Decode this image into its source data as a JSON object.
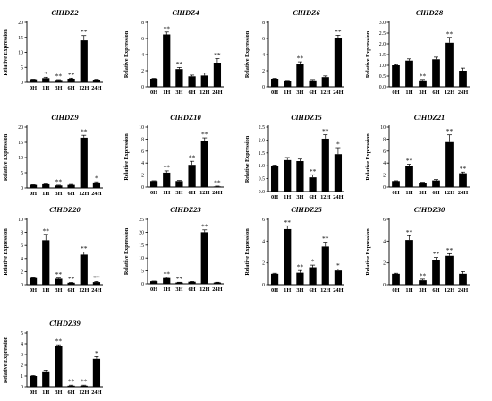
{
  "figure": {
    "background": "#ffffff",
    "bar_color": "#000000",
    "first_bar_color": "#000000"
  },
  "chart_data": [
    {
      "type": "bar",
      "title": "ClHDZ2",
      "ylabel": "Relative Expression",
      "categories": [
        "0H",
        "1H",
        "3H",
        "6H",
        "12H",
        "24H"
      ],
      "values": [
        1.0,
        1.4,
        0.8,
        1.2,
        14.0,
        0.9
      ],
      "errors": [
        0.05,
        0.3,
        0.1,
        0.2,
        1.6,
        0.1
      ],
      "significance": [
        "",
        "*",
        "**",
        "**",
        "**",
        ""
      ],
      "ylim": [
        0,
        20
      ],
      "yticks": [
        0,
        5,
        10,
        15,
        20
      ],
      "ytick_labels": [
        "0",
        "5",
        "10",
        "15",
        "20"
      ]
    },
    {
      "type": "bar",
      "title": "ClHDZ4",
      "ylabel": "Relative Expression",
      "categories": [
        "0H",
        "1H",
        "3H",
        "6H",
        "12H",
        "24H"
      ],
      "values": [
        1.0,
        6.5,
        2.2,
        1.3,
        1.4,
        3.0
      ],
      "errors": [
        0.05,
        0.3,
        0.2,
        0.15,
        0.3,
        0.5
      ],
      "significance": [
        "",
        "**",
        "**",
        "",
        "",
        "**"
      ],
      "ylim": [
        0,
        8
      ],
      "yticks": [
        0,
        2,
        4,
        6,
        8
      ],
      "ytick_labels": [
        "0",
        "2",
        "4",
        "6",
        "8"
      ]
    },
    {
      "type": "bar",
      "title": "ClHDZ6",
      "ylabel": "Relative Expression",
      "categories": [
        "0H",
        "1H",
        "3H",
        "6H",
        "12H",
        "24H"
      ],
      "values": [
        1.0,
        0.7,
        2.8,
        0.8,
        1.2,
        6.0
      ],
      "errors": [
        0.05,
        0.1,
        0.3,
        0.1,
        0.15,
        0.4
      ],
      "significance": [
        "",
        "",
        "**",
        "",
        "",
        "**"
      ],
      "ylim": [
        0,
        8
      ],
      "yticks": [
        0,
        2,
        4,
        6,
        8
      ],
      "ytick_labels": [
        "0",
        "2",
        "4",
        "6",
        "8"
      ]
    },
    {
      "type": "bar",
      "title": "ClHDZ8",
      "ylabel": "Relative Expression",
      "categories": [
        "0H",
        "1H",
        "3H",
        "6H",
        "12H",
        "24H"
      ],
      "values": [
        1.0,
        1.22,
        0.3,
        1.28,
        2.05,
        0.75
      ],
      "errors": [
        0.03,
        0.08,
        0.04,
        0.1,
        0.25,
        0.12
      ],
      "significance": [
        "",
        "",
        "**",
        "",
        "**",
        ""
      ],
      "ylim": [
        0,
        3
      ],
      "yticks": [
        0,
        0.5,
        1,
        1.5,
        2,
        2.5,
        3
      ],
      "ytick_labels": [
        "0.0",
        "0.5",
        "1.0",
        "1.5",
        "2.0",
        "2.5",
        "3.0"
      ]
    },
    {
      "type": "bar",
      "title": "ClHDZ9",
      "ylabel": "Relative Expression",
      "categories": [
        "0H",
        "1H",
        "3H",
        "6H",
        "12H",
        "24H"
      ],
      "values": [
        1.0,
        1.2,
        0.8,
        1.0,
        16.5,
        1.8
      ],
      "errors": [
        0.05,
        0.1,
        0.1,
        0.15,
        0.8,
        0.2
      ],
      "significance": [
        "",
        "",
        "**",
        "",
        "**",
        "*"
      ],
      "ylim": [
        0,
        20
      ],
      "yticks": [
        0,
        5,
        10,
        15,
        20
      ],
      "ytick_labels": [
        "0",
        "5",
        "10",
        "15",
        "20"
      ]
    },
    {
      "type": "bar",
      "title": "ClHDZ10",
      "ylabel": "Relative Expression",
      "categories": [
        "0H",
        "1H",
        "3H",
        "6H",
        "12H",
        "24H"
      ],
      "values": [
        1.0,
        2.4,
        1.0,
        3.7,
        7.7,
        0.1
      ],
      "errors": [
        0.05,
        0.3,
        0.1,
        0.6,
        0.5,
        0.05
      ],
      "significance": [
        "",
        "**",
        "",
        "**",
        "**",
        "**"
      ],
      "ylim": [
        0,
        10
      ],
      "yticks": [
        0,
        2,
        4,
        6,
        8,
        10
      ],
      "ytick_labels": [
        "0",
        "2",
        "4",
        "6",
        "8",
        "10"
      ]
    },
    {
      "type": "bar",
      "title": "ClHDZ15",
      "ylabel": "Relative Expression",
      "categories": [
        "0H",
        "1H",
        "3H",
        "6H",
        "12H",
        "24H"
      ],
      "values": [
        1.0,
        1.22,
        1.18,
        0.55,
        2.05,
        1.45
      ],
      "errors": [
        0.03,
        0.1,
        0.08,
        0.1,
        0.15,
        0.25
      ],
      "significance": [
        "",
        "",
        "",
        "**",
        "**",
        "*"
      ],
      "ylim": [
        0,
        2.5
      ],
      "yticks": [
        0,
        0.5,
        1,
        1.5,
        2,
        2.5
      ],
      "ytick_labels": [
        "0.0",
        "0.5",
        "1.0",
        "1.5",
        "2.0",
        "2.5"
      ]
    },
    {
      "type": "bar",
      "title": "ClHDZ21",
      "ylabel": "Relative Expression",
      "categories": [
        "0H",
        "1H",
        "3H",
        "6H",
        "12H",
        "24H"
      ],
      "values": [
        1.0,
        3.5,
        0.7,
        1.1,
        7.5,
        2.3
      ],
      "errors": [
        0.05,
        0.3,
        0.1,
        0.15,
        1.2,
        0.2
      ],
      "significance": [
        "",
        "**",
        "",
        "",
        "**",
        "**"
      ],
      "ylim": [
        0,
        10
      ],
      "yticks": [
        0,
        2,
        4,
        6,
        8,
        10
      ],
      "ytick_labels": [
        "0",
        "2",
        "4",
        "6",
        "8",
        "10"
      ]
    },
    {
      "type": "bar",
      "title": "ClHDZ20",
      "ylabel": "Relative Expression",
      "categories": [
        "0H",
        "1H",
        "3H",
        "6H",
        "12H",
        "24H"
      ],
      "values": [
        1.0,
        6.8,
        0.9,
        0.3,
        4.6,
        0.4
      ],
      "errors": [
        0.05,
        0.9,
        0.1,
        0.05,
        0.4,
        0.1
      ],
      "significance": [
        "",
        "**",
        "**",
        "**",
        "**",
        "**"
      ],
      "ylim": [
        0,
        10
      ],
      "yticks": [
        0,
        2,
        4,
        6,
        8,
        10
      ],
      "ytick_labels": [
        "0",
        "2",
        "4",
        "6",
        "8",
        "10"
      ]
    },
    {
      "type": "bar",
      "title": "ClHDZ23",
      "ylabel": "Relative Expression",
      "categories": [
        "0H",
        "1H",
        "3H",
        "6H",
        "12H",
        "24H"
      ],
      "values": [
        1.0,
        2.2,
        0.5,
        0.8,
        20.0,
        0.5
      ],
      "errors": [
        0.05,
        0.3,
        0.1,
        0.1,
        0.9,
        0.1
      ],
      "significance": [
        "",
        "**",
        "**",
        "",
        "**",
        ""
      ],
      "ylim": [
        0,
        25
      ],
      "yticks": [
        0,
        5,
        10,
        15,
        20,
        25
      ],
      "ytick_labels": [
        "0",
        "5",
        "10",
        "15",
        "20",
        "25"
      ]
    },
    {
      "type": "bar",
      "title": "ClHDZ25",
      "ylabel": "Relative Expression",
      "categories": [
        "0H",
        "1H",
        "3H",
        "6H",
        "12H",
        "24H"
      ],
      "values": [
        1.0,
        5.1,
        1.1,
        1.6,
        3.5,
        1.3
      ],
      "errors": [
        0.05,
        0.3,
        0.2,
        0.2,
        0.4,
        0.15
      ],
      "significance": [
        "",
        "**",
        "**",
        "*",
        "**",
        "*"
      ],
      "ylim": [
        0,
        6
      ],
      "yticks": [
        0,
        2,
        4,
        6
      ],
      "ytick_labels": [
        "0",
        "2",
        "4",
        "6"
      ]
    },
    {
      "type": "bar",
      "title": "ClHDZ30",
      "ylabel": "Relative Expression",
      "categories": [
        "0H",
        "1H",
        "3H",
        "6H",
        "12H",
        "24H"
      ],
      "values": [
        1.0,
        4.1,
        0.4,
        2.3,
        2.65,
        1.0
      ],
      "errors": [
        0.05,
        0.4,
        0.1,
        0.2,
        0.2,
        0.2
      ],
      "significance": [
        "",
        "**",
        "**",
        "**",
        "**",
        ""
      ],
      "ylim": [
        0,
        6
      ],
      "yticks": [
        0,
        2,
        4,
        6
      ],
      "ytick_labels": [
        "0",
        "2",
        "4",
        "6"
      ]
    },
    {
      "type": "bar",
      "title": "ClHDZ39",
      "ylabel": "Relative Expression",
      "categories": [
        "0H",
        "1H",
        "3H",
        "6H",
        "12H",
        "24H"
      ],
      "values": [
        1.0,
        1.35,
        3.75,
        0.1,
        0.1,
        2.6
      ],
      "errors": [
        0.05,
        0.2,
        0.15,
        0.05,
        0.05,
        0.2
      ],
      "significance": [
        "",
        "",
        "**",
        "**",
        "**",
        "*"
      ],
      "ylim": [
        0,
        5
      ],
      "yticks": [
        0,
        1,
        2,
        3,
        4,
        5
      ],
      "ytick_labels": [
        "0",
        "1",
        "2",
        "3",
        "4",
        "5"
      ]
    }
  ]
}
